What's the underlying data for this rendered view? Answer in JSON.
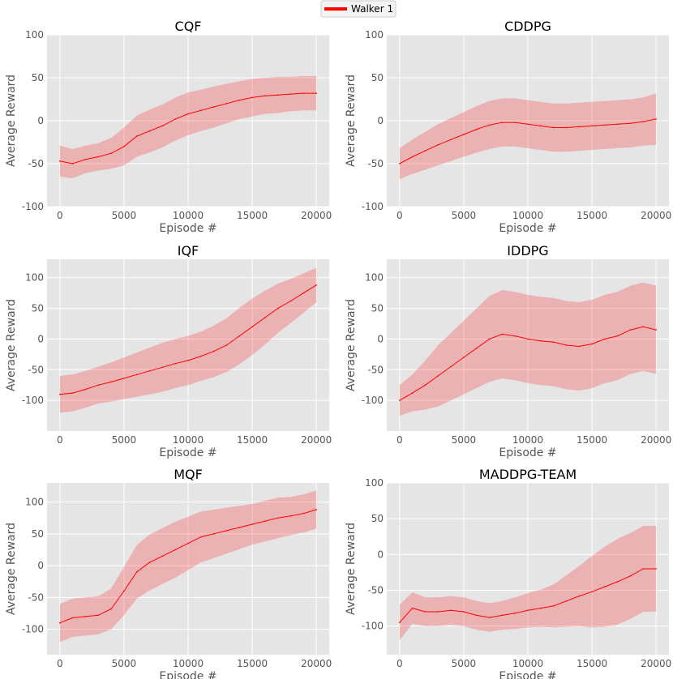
{
  "legend": {
    "label": "Walker 1",
    "color": "#ff0000"
  },
  "chart_data": [
    {
      "type": "line",
      "title": "CQF",
      "xlabel": "Episode #",
      "ylabel": "Average Reward",
      "xlim": [
        -1000,
        21000
      ],
      "ylim": [
        -100,
        100
      ],
      "xticks": [
        0,
        5000,
        10000,
        15000,
        20000
      ],
      "yticks": [
        -100,
        -50,
        0,
        50,
        100
      ],
      "x": [
        0,
        1000,
        2000,
        3000,
        4000,
        5000,
        6000,
        7000,
        8000,
        9000,
        10000,
        11000,
        12000,
        13000,
        14000,
        15000,
        16000,
        17000,
        18000,
        19000,
        20000
      ],
      "series": [
        {
          "name": "Walker 1",
          "mean": [
            -47,
            -50,
            -45,
            -42,
            -38,
            -30,
            -18,
            -12,
            -6,
            2,
            8,
            12,
            16,
            20,
            24,
            27,
            29,
            30,
            31,
            32,
            32
          ],
          "spread": [
            18,
            17,
            16,
            16,
            18,
            22,
            24,
            25,
            25,
            25,
            25,
            24,
            24,
            23,
            22,
            22,
            21,
            21,
            20,
            20,
            20
          ]
        }
      ]
    },
    {
      "type": "line",
      "title": "CDDPG",
      "xlabel": "Episode #",
      "ylabel": "Average Reward",
      "xlim": [
        -1000,
        21000
      ],
      "ylim": [
        -100,
        100
      ],
      "xticks": [
        0,
        5000,
        10000,
        15000,
        20000
      ],
      "yticks": [
        -100,
        -50,
        0,
        50,
        100
      ],
      "x": [
        0,
        1000,
        2000,
        3000,
        4000,
        5000,
        6000,
        7000,
        8000,
        9000,
        10000,
        11000,
        12000,
        13000,
        14000,
        15000,
        16000,
        17000,
        18000,
        19000,
        20000
      ],
      "series": [
        {
          "name": "Walker 1",
          "mean": [
            -50,
            -42,
            -35,
            -28,
            -22,
            -16,
            -10,
            -5,
            -2,
            -2,
            -4,
            -6,
            -8,
            -8,
            -7,
            -6,
            -5,
            -4,
            -3,
            -1,
            2
          ],
          "spread": [
            18,
            20,
            22,
            24,
            25,
            26,
            27,
            28,
            28,
            28,
            28,
            28,
            28,
            28,
            28,
            28,
            28,
            28,
            28,
            28,
            30
          ]
        }
      ]
    },
    {
      "type": "line",
      "title": "IQF",
      "xlabel": "Episode #",
      "ylabel": "Average Reward",
      "xlim": [
        -1000,
        21000
      ],
      "ylim": [
        -150,
        130
      ],
      "xticks": [
        0,
        5000,
        10000,
        15000,
        20000
      ],
      "yticks": [
        -100,
        -50,
        0,
        50,
        100
      ],
      "x": [
        0,
        1000,
        2000,
        3000,
        4000,
        5000,
        6000,
        7000,
        8000,
        9000,
        10000,
        11000,
        12000,
        13000,
        14000,
        15000,
        16000,
        17000,
        18000,
        19000,
        20000
      ],
      "series": [
        {
          "name": "Walker 1",
          "mean": [
            -90,
            -88,
            -82,
            -75,
            -70,
            -64,
            -58,
            -52,
            -46,
            -40,
            -35,
            -28,
            -20,
            -10,
            5,
            20,
            35,
            50,
            62,
            75,
            88
          ],
          "spread": [
            30,
            30,
            30,
            30,
            32,
            34,
            36,
            38,
            40,
            40,
            40,
            40,
            42,
            44,
            46,
            46,
            44,
            40,
            36,
            32,
            28
          ]
        }
      ]
    },
    {
      "type": "line",
      "title": "IDDPG",
      "xlabel": "Episode #",
      "ylabel": "Average Reward",
      "xlim": [
        -1000,
        21000
      ],
      "ylim": [
        -150,
        130
      ],
      "xticks": [
        0,
        5000,
        10000,
        15000,
        20000
      ],
      "yticks": [
        -100,
        -50,
        0,
        50,
        100
      ],
      "x": [
        0,
        1000,
        2000,
        3000,
        4000,
        5000,
        6000,
        7000,
        8000,
        9000,
        10000,
        11000,
        12000,
        13000,
        14000,
        15000,
        16000,
        17000,
        18000,
        19000,
        20000
      ],
      "series": [
        {
          "name": "Walker 1",
          "mean": [
            -100,
            -88,
            -75,
            -60,
            -45,
            -30,
            -15,
            0,
            8,
            5,
            0,
            -3,
            -5,
            -10,
            -12,
            -8,
            0,
            5,
            15,
            20,
            15
          ],
          "spread": [
            25,
            30,
            40,
            50,
            55,
            60,
            65,
            70,
            72,
            72,
            72,
            72,
            72,
            72,
            72,
            72,
            72,
            72,
            72,
            72,
            72
          ]
        }
      ]
    },
    {
      "type": "line",
      "title": "MQF",
      "xlabel": "Episode #",
      "ylabel": "Average Reward",
      "xlim": [
        -1000,
        21000
      ],
      "ylim": [
        -140,
        130
      ],
      "xticks": [
        0,
        5000,
        10000,
        15000,
        20000
      ],
      "yticks": [
        -100,
        -50,
        0,
        50,
        100
      ],
      "x": [
        0,
        1000,
        2000,
        3000,
        4000,
        5000,
        6000,
        7000,
        8000,
        9000,
        10000,
        11000,
        12000,
        13000,
        14000,
        15000,
        16000,
        17000,
        18000,
        19000,
        20000
      ],
      "series": [
        {
          "name": "Walker 1",
          "mean": [
            -90,
            -82,
            -80,
            -78,
            -68,
            -40,
            -10,
            5,
            15,
            25,
            35,
            45,
            50,
            55,
            60,
            65,
            70,
            75,
            78,
            82,
            88
          ],
          "spread": [
            30,
            30,
            30,
            30,
            32,
            38,
            42,
            44,
            44,
            44,
            42,
            40,
            38,
            36,
            34,
            32,
            32,
            32,
            30,
            30,
            30
          ]
        }
      ]
    },
    {
      "type": "line",
      "title": "MADDPG-TEAM",
      "xlabel": "Episode #",
      "ylabel": "Average Reward",
      "xlim": [
        -1000,
        21000
      ],
      "ylim": [
        -140,
        100
      ],
      "xticks": [
        0,
        5000,
        10000,
        15000,
        20000
      ],
      "yticks": [
        -100,
        -50,
        0,
        50,
        100
      ],
      "x": [
        0,
        1000,
        2000,
        3000,
        4000,
        5000,
        6000,
        7000,
        8000,
        9000,
        10000,
        11000,
        12000,
        13000,
        14000,
        15000,
        16000,
        17000,
        18000,
        19000,
        20000
      ],
      "series": [
        {
          "name": "Walker 1",
          "mean": [
            -95,
            -75,
            -80,
            -80,
            -78,
            -80,
            -85,
            -88,
            -85,
            -82,
            -78,
            -75,
            -72,
            -65,
            -58,
            -52,
            -45,
            -38,
            -30,
            -20,
            -20
          ],
          "spread": [
            25,
            22,
            20,
            20,
            20,
            20,
            20,
            20,
            20,
            22,
            24,
            26,
            30,
            36,
            42,
            50,
            56,
            60,
            60,
            60,
            60
          ]
        }
      ]
    }
  ]
}
